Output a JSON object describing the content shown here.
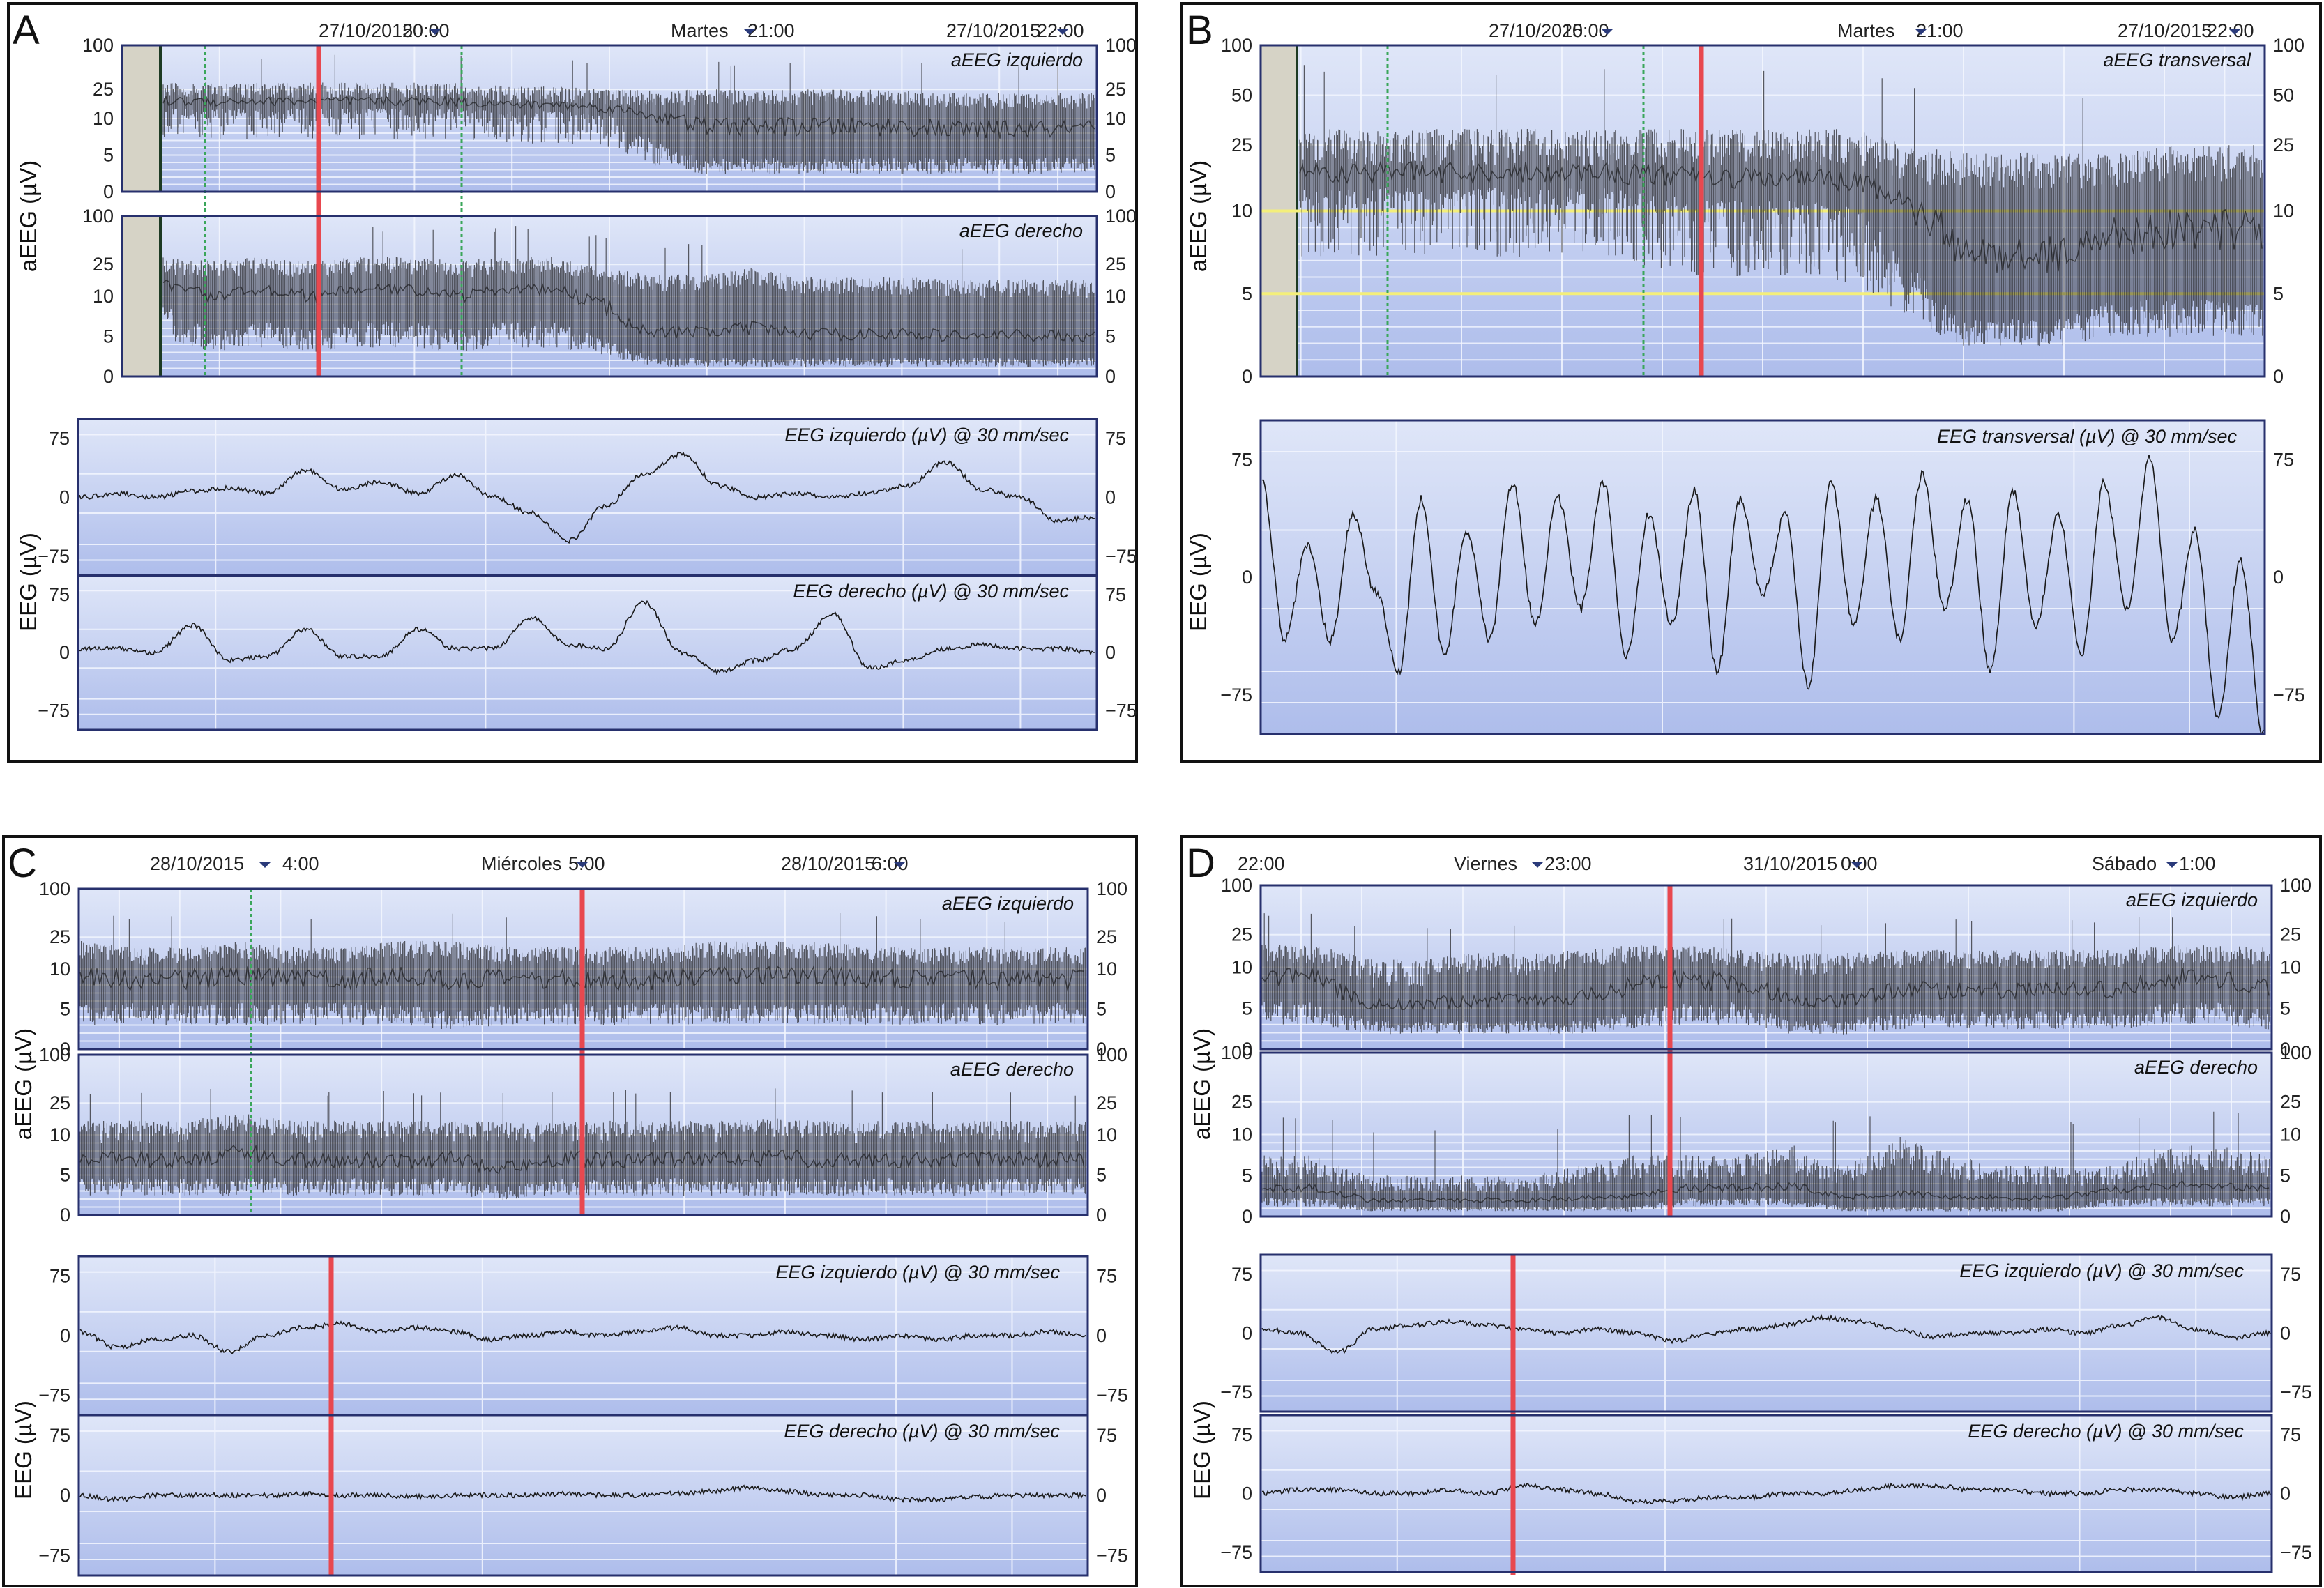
{
  "figure": {
    "panels": [
      {
        "letter": "A",
        "header": [
          "27/10/2015",
          "20:00",
          "Martes",
          "21:00",
          "27/10/2015",
          "22:00"
        ],
        "ylabel_top": "aEEG (µV)",
        "ylabel_bottom": "EEG (µV)",
        "charts": [
          {
            "title": "aEEG izquierdo",
            "ticks": [
              "100",
              "25",
              "10",
              "5",
              "0"
            ]
          },
          {
            "title": "aEEG derecho",
            "ticks": [
              "100",
              "25",
              "10",
              "5",
              "0"
            ]
          },
          {
            "title": "EEG izquierdo  (µV) @ 30 mm/sec",
            "ticks": [
              "75",
              "0",
              "−75"
            ]
          },
          {
            "title": "EEG derecho  (µV) @ 30 mm/sec",
            "ticks": [
              "75",
              "0",
              "−75"
            ]
          }
        ]
      },
      {
        "letter": "B",
        "header": [
          "27/10/2015",
          "20:00",
          "Martes",
          "21:00",
          "27/10/2015",
          "22:00"
        ],
        "ylabel_top": "aEEG (µV)",
        "ylabel_bottom": "EEG (µV)",
        "charts": [
          {
            "title": "aEEG transversal",
            "ticks": [
              "100",
              "50",
              "25",
              "10",
              "5",
              "0"
            ]
          },
          {
            "title": "EEG transversal (µV) @ 30 mm/sec",
            "ticks": [
              "75",
              "0",
              "−75"
            ]
          }
        ]
      },
      {
        "letter": "C",
        "header": [
          "28/10/2015",
          "4:00",
          "Miércoles",
          "5:00",
          "28/10/2015",
          "6:00"
        ],
        "ylabel_top": "aEEG (µV)",
        "ylabel_bottom": "EEG (µV)",
        "charts": [
          {
            "title": "aEEG izquierdo",
            "ticks": [
              "100",
              "25",
              "10",
              "5",
              "0"
            ]
          },
          {
            "title": "aEEG derecho",
            "ticks": [
              "100",
              "25",
              "10",
              "5",
              "0"
            ]
          },
          {
            "title": "EEG izquierdo  (µV) @ 30 mm/sec",
            "ticks": [
              "75",
              "0",
              "−75"
            ]
          },
          {
            "title": "EEG derecho  (µV) @ 30 mm/sec",
            "ticks": [
              "75",
              "0",
              "−75"
            ]
          }
        ]
      },
      {
        "letter": "D",
        "header": [
          "22:00",
          "Viernes",
          "23:00",
          "31/10/2015",
          "0:00",
          "Sábado",
          "1:00"
        ],
        "ylabel_top": "aEEG (µV)",
        "ylabel_bottom": "EEG (µV)",
        "charts": [
          {
            "title": "aEEG izquierdo",
            "ticks": [
              "100",
              "25",
              "10",
              "5",
              "0"
            ]
          },
          {
            "title": "aEEG derecho",
            "ticks": [
              "100",
              "25",
              "10",
              "5",
              "0"
            ]
          },
          {
            "title": "EEG izquierdo  (µV) @ 30 mm/sec",
            "ticks": [
              "75",
              "0",
              "−75"
            ]
          },
          {
            "title": "EEG derecho (µV) @ 30 mm/sec",
            "ticks": [
              "75",
              "0",
              "−75"
            ]
          }
        ]
      }
    ]
  },
  "chart_data": [
    {
      "panel": "A",
      "type": "line",
      "aeeg_scale": "semi-log (0–10 linear, 10–100 log)",
      "eeg_ylim": [
        -100,
        100
      ],
      "series": [
        {
          "name": "aEEG izquierdo",
          "lower": [
            12,
            12,
            12,
            12,
            12,
            12,
            12,
            11,
            11,
            10,
            6,
            4,
            4,
            4,
            4,
            4,
            4,
            4,
            4,
            4
          ],
          "upper": [
            25,
            25,
            25,
            25,
            25,
            25,
            25,
            22,
            22,
            20,
            20,
            20,
            20,
            20,
            20,
            20,
            18,
            18,
            18,
            18
          ]
        },
        {
          "name": "aEEG derecho",
          "lower": [
            8,
            5,
            6,
            5,
            6,
            6,
            5,
            6,
            6,
            4,
            2,
            2,
            2,
            2,
            2,
            2,
            2,
            2,
            2,
            2
          ],
          "upper": [
            25,
            22,
            25,
            22,
            25,
            25,
            22,
            25,
            25,
            18,
            15,
            15,
            18,
            14,
            14,
            14,
            13,
            13,
            13,
            13
          ]
        },
        {
          "name": "EEG izquierdo",
          "y": [
            0,
            5,
            0,
            8,
            12,
            5,
            35,
            10,
            20,
            5,
            28,
            0,
            -20,
            -55,
            -10,
            30,
            55,
            15,
            0,
            5,
            0,
            5,
            15,
            45,
            10,
            0,
            -30,
            -25
          ]
        },
        {
          "name": "EEG derecho",
          "y": [
            5,
            5,
            0,
            35,
            -10,
            -5,
            30,
            -5,
            -5,
            30,
            5,
            5,
            45,
            10,
            5,
            65,
            0,
            -25,
            -10,
            5,
            50,
            -20,
            -10,
            5,
            10,
            5,
            5,
            0
          ]
        }
      ],
      "annotations": [
        "red marker line",
        "green dotted marker lines"
      ]
    },
    {
      "panel": "B",
      "type": "line",
      "aeeg_scale": "semi-log (0–10 linear, 10–100 log)",
      "eeg_ylim": [
        -100,
        100
      ],
      "series": [
        {
          "name": "aEEG transversal",
          "lower": [
            12,
            12,
            12,
            12,
            12,
            12,
            12,
            11,
            10,
            10,
            10,
            9,
            6,
            3,
            3,
            3,
            4,
            4,
            4,
            4
          ],
          "upper": [
            25,
            25,
            25,
            25,
            25,
            25,
            25,
            25,
            25,
            25,
            25,
            25,
            20,
            18,
            18,
            18,
            18,
            20,
            20,
            20
          ]
        },
        {
          "name": "EEG transversal",
          "y": [
            60,
            -40,
            20,
            -40,
            40,
            -10,
            -60,
            50,
            -50,
            30,
            -40,
            60,
            -30,
            50,
            -20,
            60,
            -50,
            40,
            -30,
            55,
            -60,
            50,
            -10,
            40,
            -70,
            60,
            -30,
            50,
            -40,
            65,
            -20,
            50,
            -60,
            55,
            -30,
            40,
            -50,
            60,
            -20,
            75,
            -40,
            30,
            -90,
            10,
            -100
          ]
        }
      ],
      "reference_lines": [
        10,
        5
      ],
      "annotations": [
        "red marker line",
        "green dotted marker lines",
        "yellow reference lines"
      ]
    },
    {
      "panel": "C",
      "type": "line",
      "aeeg_scale": "semi-log (0–10 linear, 10–100 log)",
      "eeg_ylim": [
        -100,
        100
      ],
      "series": [
        {
          "name": "aEEG izquierdo",
          "lower": [
            5,
            5,
            5,
            5,
            5,
            5,
            5,
            4,
            5,
            5,
            5,
            5,
            5,
            5,
            5,
            5,
            5,
            5,
            5,
            5
          ],
          "upper": [
            18,
            15,
            15,
            18,
            15,
            15,
            18,
            18,
            15,
            15,
            15,
            15,
            18,
            18,
            18,
            15,
            15,
            15,
            15,
            15
          ]
        },
        {
          "name": "aEEG derecho",
          "lower": [
            4,
            4,
            4,
            4,
            4,
            4,
            4,
            4,
            3,
            4,
            4,
            4,
            4,
            4,
            4,
            4,
            4,
            4,
            4,
            4
          ],
          "upper": [
            12,
            12,
            12,
            15,
            12,
            12,
            12,
            12,
            12,
            12,
            12,
            12,
            12,
            13,
            12,
            12,
            12,
            12,
            12,
            12
          ]
        },
        {
          "name": "EEG izquierdo",
          "y": [
            5,
            -15,
            -5,
            0,
            -20,
            0,
            10,
            15,
            5,
            10,
            5,
            -5,
            0,
            5,
            0,
            5,
            10,
            0,
            0,
            5,
            0,
            -5,
            0,
            -5,
            0,
            0,
            5,
            0
          ]
        },
        {
          "name": "EEG derecho",
          "y": [
            0,
            -5,
            0,
            0,
            0,
            0,
            2,
            0,
            0,
            -2,
            0,
            0,
            0,
            2,
            0,
            0,
            2,
            5,
            10,
            5,
            0,
            0,
            -5,
            -5,
            -2,
            0,
            0,
            0
          ]
        }
      ],
      "annotations": [
        "red marker line",
        "green dotted marker line"
      ]
    },
    {
      "panel": "D",
      "type": "line",
      "aeeg_scale": "semi-log (0–10 linear, 10–100 log)",
      "eeg_ylim": [
        -100,
        100
      ],
      "series": [
        {
          "name": "aEEG izquierdo",
          "lower": [
            5,
            5,
            3,
            3,
            3,
            3,
            3,
            4,
            5,
            5,
            3,
            3,
            4,
            4,
            4,
            4,
            4,
            5,
            5,
            4
          ],
          "upper": [
            15,
            15,
            10,
            10,
            12,
            12,
            13,
            15,
            15,
            13,
            12,
            12,
            13,
            13,
            13,
            13,
            13,
            15,
            15,
            14
          ]
        },
        {
          "name": "aEEG derecho",
          "lower": [
            2,
            2,
            1,
            1,
            1,
            1,
            1,
            1,
            2,
            2,
            2,
            1,
            1,
            1,
            1,
            1,
            2,
            2,
            2,
            2
          ],
          "upper": [
            6,
            6,
            4,
            4,
            4,
            4,
            5,
            6,
            6,
            6,
            7,
            5,
            8,
            6,
            5,
            5,
            5,
            7,
            7,
            6
          ]
        },
        {
          "name": "EEG izquierdo",
          "y": [
            5,
            0,
            -25,
            5,
            10,
            15,
            10,
            5,
            0,
            5,
            0,
            -10,
            0,
            5,
            10,
            20,
            15,
            5,
            -5,
            0,
            0,
            5,
            0,
            10,
            20,
            5,
            -5,
            0
          ]
        },
        {
          "name": "EEG derecho",
          "y": [
            0,
            5,
            5,
            0,
            0,
            5,
            0,
            10,
            5,
            0,
            -10,
            -10,
            -5,
            -5,
            0,
            0,
            5,
            10,
            10,
            5,
            5,
            0,
            0,
            5,
            5,
            0,
            -5,
            0
          ]
        }
      ],
      "annotations": [
        "red marker line"
      ]
    }
  ]
}
